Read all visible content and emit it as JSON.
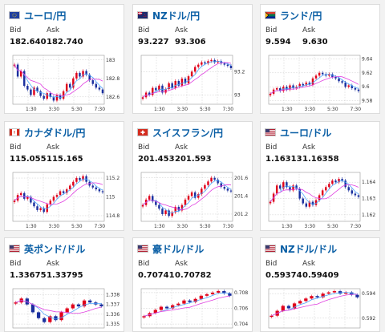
{
  "labels": {
    "bid": "Bid",
    "ask": "Ask"
  },
  "colors": {
    "up": "#e0001a",
    "down": "#1a2f9e",
    "ma_short": "#4da6ff",
    "ma_long": "#e040e0",
    "title": "#0b5fa5"
  },
  "cards": [
    {
      "pair": "ユーロ/円",
      "flag": "eu-flag-icon",
      "bid": "182.640",
      "ask": "182.740",
      "chart_data": {
        "type": "candlestick",
        "x_ticks": [
          "1:30",
          "3:30",
          "5:30",
          "7:30"
        ],
        "y_ticks": [
          "183",
          "182.8",
          "182.6"
        ],
        "ylim": [
          182.52,
          183.05
        ],
        "closes": [
          182.95,
          182.82,
          182.88,
          182.72,
          182.68,
          182.62,
          182.7,
          182.66,
          182.61,
          182.58,
          182.64,
          182.6,
          182.56,
          182.62,
          182.58,
          182.66,
          182.74,
          182.7,
          182.8,
          182.86,
          182.82,
          182.88,
          182.84,
          182.78,
          182.74,
          182.7,
          182.68,
          182.64
        ]
      }
    },
    {
      "pair": "NZドル/円",
      "flag": "nz-flag-icon",
      "bid": "93.227",
      "ask": "93.306",
      "chart_data": {
        "type": "candlestick",
        "x_ticks": [
          "1:30",
          "3:30",
          "5:30",
          "7:30"
        ],
        "y_ticks": [
          "93.2",
          "93"
        ],
        "ylim": [
          92.92,
          93.34
        ],
        "closes": [
          92.98,
          93.02,
          93.0,
          93.06,
          93.04,
          93.08,
          93.02,
          93.05,
          93.1,
          93.06,
          93.12,
          93.08,
          93.14,
          93.1,
          93.16,
          93.2,
          93.24,
          93.26,
          93.28,
          93.27,
          93.29,
          93.3,
          93.28,
          93.29,
          93.27,
          93.26,
          93.25,
          93.23
        ]
      }
    },
    {
      "pair": "ランド/円",
      "flag": "za-flag-icon",
      "bid": "9.594",
      "ask": "9.630",
      "chart_data": {
        "type": "candlestick",
        "x_ticks": [
          "1:30",
          "3:30",
          "5:30",
          "7:30"
        ],
        "y_ticks": [
          "9.64",
          "9.62",
          "9.6",
          "9.58"
        ],
        "ylim": [
          9.575,
          9.645
        ],
        "closes": [
          9.59,
          9.596,
          9.598,
          9.594,
          9.6,
          9.596,
          9.602,
          9.598,
          9.6,
          9.604,
          9.602,
          9.606,
          9.603,
          9.612,
          9.616,
          9.62,
          9.618,
          9.616,
          9.618,
          9.614,
          9.612,
          9.608,
          9.606,
          9.6,
          9.602,
          9.598,
          9.596,
          9.594
        ]
      }
    },
    {
      "pair": "カナダドル/円",
      "flag": "ca-flag-icon",
      "bid": "115.055",
      "ask": "115.165",
      "chart_data": {
        "type": "candlestick",
        "x_ticks": [
          "1:30",
          "3:30",
          "5:30",
          "7:30"
        ],
        "y_ticks": [
          "115.2",
          "115",
          "114.8"
        ],
        "ylim": [
          114.74,
          115.26
        ],
        "closes": [
          114.96,
          115.02,
          115.04,
          114.98,
          115.0,
          114.94,
          114.9,
          114.86,
          114.88,
          114.84,
          114.92,
          114.96,
          115.0,
          115.02,
          115.06,
          115.04,
          115.08,
          115.12,
          115.16,
          115.2,
          115.18,
          115.22,
          115.16,
          115.12,
          115.1,
          115.08,
          115.06,
          115.05
        ]
      }
    },
    {
      "pair": "スイスフラン/円",
      "flag": "ch-flag-icon",
      "bid": "201.453",
      "ask": "201.593",
      "chart_data": {
        "type": "candlestick",
        "x_ticks": [
          "1:30",
          "3:30",
          "5:30",
          "7:30"
        ],
        "y_ticks": [
          "201.6",
          "201.4",
          "201.2"
        ],
        "ylim": [
          201.12,
          201.66
        ],
        "closes": [
          201.3,
          201.36,
          201.4,
          201.34,
          201.3,
          201.26,
          201.2,
          201.24,
          201.18,
          201.22,
          201.28,
          201.24,
          201.3,
          201.36,
          201.4,
          201.44,
          201.38,
          201.42,
          201.48,
          201.52,
          201.56,
          201.6,
          201.58,
          201.54,
          201.5,
          201.48,
          201.46,
          201.45
        ]
      }
    },
    {
      "pair": "ユーロ/ドル",
      "flag": "us-flag-icon",
      "bid": "1.16313",
      "ask": "1.16358",
      "chart_data": {
        "type": "candlestick",
        "x_ticks": [
          "1:30",
          "3:30",
          "5:30",
          "7:30"
        ],
        "y_ticks": [
          "1.164",
          "1.163",
          "1.162"
        ],
        "ylim": [
          1.1616,
          1.1646
        ],
        "closes": [
          1.1628,
          1.1633,
          1.1638,
          1.1636,
          1.164,
          1.1637,
          1.1635,
          1.1638,
          1.1636,
          1.163,
          1.1627,
          1.1625,
          1.1628,
          1.1626,
          1.1629,
          1.1632,
          1.1635,
          1.1637,
          1.1639,
          1.1641,
          1.164,
          1.1642,
          1.1641,
          1.1637,
          1.1635,
          1.1633,
          1.1632,
          1.1631
        ]
      }
    },
    {
      "pair": "英ポンド/ドル",
      "flag": "us-flag-icon",
      "bid": "1.33675",
      "ask": "1.33795",
      "chart_data": {
        "type": "candlestick",
        "x_ticks": [],
        "y_ticks": [
          "1.338",
          "1.337",
          "1.336",
          "1.335"
        ],
        "ylim": [
          1.3346,
          1.3386
        ],
        "closes": [
          1.3372,
          1.3376,
          1.337,
          1.3362,
          1.3356,
          1.3352,
          1.3358,
          1.3354,
          1.3362,
          1.3366,
          1.337,
          1.3368,
          1.3374,
          1.3372,
          1.337,
          1.3368
        ]
      }
    },
    {
      "pair": "豪ドル/ドル",
      "flag": "us-flag-icon",
      "bid": "0.70741",
      "ask": "0.70782",
      "chart_data": {
        "type": "candlestick",
        "x_ticks": [],
        "y_ticks": [
          "0.708",
          "0.706",
          "0.704"
        ],
        "ylim": [
          0.7035,
          0.7085
        ],
        "closes": [
          0.705,
          0.7054,
          0.7058,
          0.7062,
          0.706,
          0.7064,
          0.7066,
          0.707,
          0.7068,
          0.7072,
          0.7076,
          0.7078,
          0.708,
          0.7082,
          0.7079,
          0.7076
        ]
      }
    },
    {
      "pair": "NZドル/ドル",
      "flag": "us-flag-icon",
      "bid": "0.59374",
      "ask": "0.59409",
      "chart_data": {
        "type": "candlestick",
        "x_ticks": [],
        "y_ticks": [
          "0.594",
          "0.592"
        ],
        "ylim": [
          0.5912,
          0.5944
        ],
        "closes": [
          0.5922,
          0.5926,
          0.593,
          0.5928,
          0.5932,
          0.5934,
          0.5936,
          0.5938,
          0.5937,
          0.594,
          0.5941,
          0.5942,
          0.594,
          0.5941,
          0.5939,
          0.5937
        ]
      }
    }
  ]
}
